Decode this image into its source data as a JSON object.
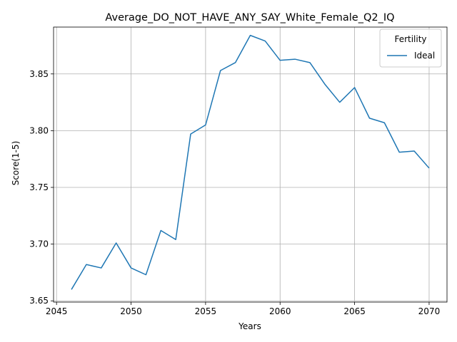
{
  "chart_data": {
    "type": "line",
    "title": "Average_DO_NOT_HAVE_ANY_SAY_White_Female_Q2_IQ",
    "xlabel": "Years",
    "ylabel": "Score(1-5)",
    "xlim": [
      2044.8,
      2071.2
    ],
    "ylim": [
      3.6489,
      3.8913
    ],
    "xticks": [
      2045,
      2050,
      2055,
      2060,
      2065,
      2070
    ],
    "xtick_labels": [
      "2045",
      "2050",
      "2055",
      "2060",
      "2065",
      "2070"
    ],
    "yticks": [
      3.65,
      3.7,
      3.75,
      3.8,
      3.85
    ],
    "ytick_labels": [
      "3.65",
      "3.70",
      "3.75",
      "3.80",
      "3.85"
    ],
    "grid": true,
    "legend": {
      "title": "Fertility",
      "placement": "top-right"
    },
    "series": [
      {
        "name": "Ideal",
        "color": "#1f77b4",
        "x": [
          2046,
          2047,
          2048,
          2049,
          2050,
          2051,
          2052,
          2053,
          2054,
          2055,
          2056,
          2057,
          2058,
          2059,
          2060,
          2061,
          2062,
          2063,
          2064,
          2065,
          2066,
          2067,
          2068,
          2069,
          2070
        ],
        "y": [
          3.66,
          3.682,
          3.679,
          3.701,
          3.679,
          3.673,
          3.712,
          3.704,
          3.797,
          3.805,
          3.853,
          3.86,
          3.884,
          3.879,
          3.862,
          3.863,
          3.86,
          3.841,
          3.825,
          3.838,
          3.811,
          3.807,
          3.781,
          3.782,
          3.767
        ]
      }
    ]
  }
}
